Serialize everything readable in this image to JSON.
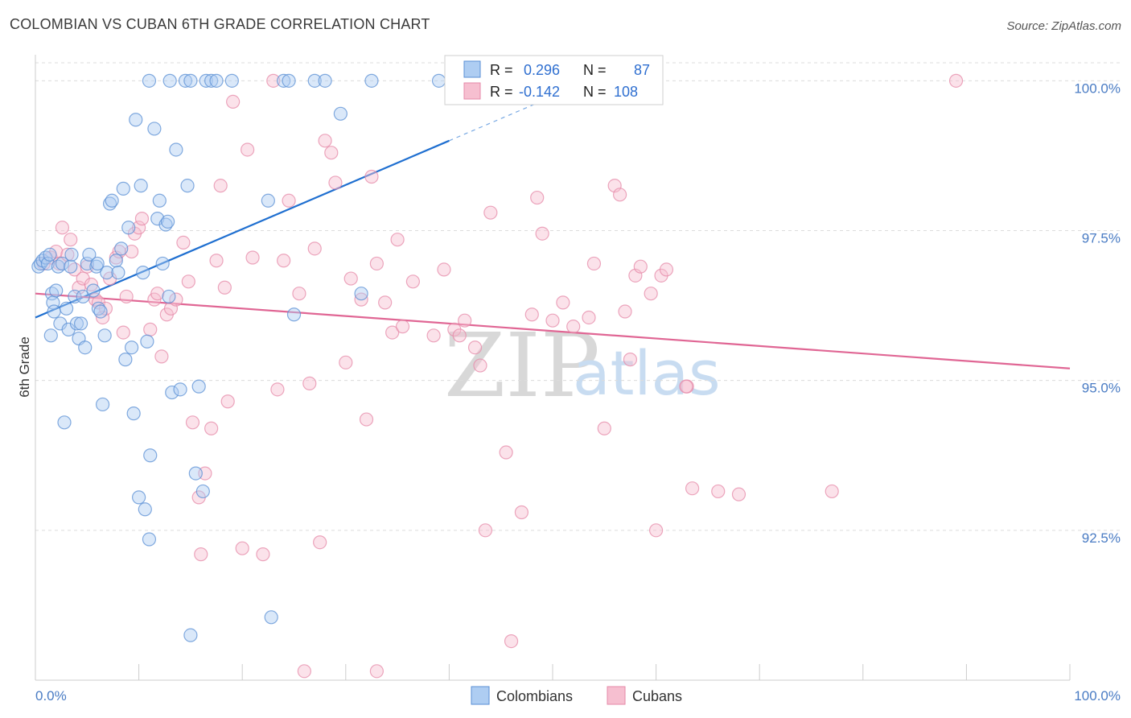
{
  "header": {
    "title": "COLOMBIAN VS CUBAN 6TH GRADE CORRELATION CHART",
    "source": "Source: ZipAtlas.com"
  },
  "watermark": {
    "zip": "ZIP",
    "atlas": "atlas"
  },
  "colors": {
    "colombians_fill": "#aecdf2",
    "colombians_stroke": "#5a8fd4",
    "colombians_line": "#1f6fd0",
    "cubans_fill": "#f6bfd0",
    "cubans_stroke": "#e68aa8",
    "cubans_line": "#e06694",
    "grid": "#dcdcdc",
    "axis_tick": "#4a7cc4"
  },
  "stats": [
    {
      "r_label": "R =",
      "r_value": "0.296",
      "n_label": "N =",
      "n_value": "87"
    },
    {
      "r_label": "R =",
      "r_value": "-0.142",
      "n_label": "N =",
      "n_value": "108"
    }
  ],
  "chart_data": {
    "type": "scatter",
    "title": "COLOMBIAN VS CUBAN 6TH GRADE CORRELATION CHART",
    "xlabel": "",
    "ylabel": "6th Grade",
    "xlim": [
      0,
      100
    ],
    "ylim": [
      90.0,
      100.3
    ],
    "x_tick_labels": [
      "0.0%",
      "100.0%"
    ],
    "y_ticks": [
      92.5,
      95.0,
      97.5,
      100.0
    ],
    "y_tick_labels": [
      "92.5%",
      "95.0%",
      "97.5%",
      "100.0%"
    ],
    "grid": true,
    "legend_position": "bottom-center",
    "series": [
      {
        "name": "Colombians",
        "trend": {
          "x0": 0,
          "y0": 96.05,
          "x1": 40,
          "y1": 99.0,
          "dashed_to_x": 50
        },
        "points": [
          [
            0.3,
            96.9
          ],
          [
            0.5,
            96.95
          ],
          [
            0.7,
            97.0
          ],
          [
            1.0,
            97.05
          ],
          [
            1.2,
            96.95
          ],
          [
            1.4,
            97.1
          ],
          [
            1.5,
            95.75
          ],
          [
            1.6,
            96.45
          ],
          [
            1.7,
            96.3
          ],
          [
            1.8,
            96.15
          ],
          [
            2.0,
            96.5
          ],
          [
            2.2,
            96.9
          ],
          [
            2.4,
            95.95
          ],
          [
            2.6,
            96.95
          ],
          [
            2.8,
            94.3
          ],
          [
            3.0,
            96.2
          ],
          [
            3.2,
            95.85
          ],
          [
            3.4,
            96.9
          ],
          [
            3.5,
            97.1
          ],
          [
            3.8,
            96.4
          ],
          [
            4.0,
            95.95
          ],
          [
            4.2,
            95.7
          ],
          [
            4.4,
            95.95
          ],
          [
            4.6,
            96.4
          ],
          [
            4.8,
            95.55
          ],
          [
            5.0,
            96.95
          ],
          [
            5.2,
            97.1
          ],
          [
            5.6,
            96.5
          ],
          [
            5.9,
            96.9
          ],
          [
            6.1,
            96.2
          ],
          [
            6.3,
            96.15
          ],
          [
            6.5,
            94.6
          ],
          [
            6.7,
            95.75
          ],
          [
            6.9,
            96.8
          ],
          [
            7.2,
            97.95
          ],
          [
            7.4,
            98.0
          ],
          [
            7.8,
            97.0
          ],
          [
            8.0,
            96.8
          ],
          [
            8.3,
            97.2
          ],
          [
            8.5,
            98.2
          ],
          [
            8.7,
            95.35
          ],
          [
            9.0,
            97.55
          ],
          [
            9.3,
            95.55
          ],
          [
            9.5,
            94.45
          ],
          [
            9.7,
            99.35
          ],
          [
            10.0,
            93.05
          ],
          [
            10.2,
            98.25
          ],
          [
            10.4,
            96.8
          ],
          [
            10.6,
            92.85
          ],
          [
            10.8,
            95.65
          ],
          [
            11.0,
            92.35
          ],
          [
            11.1,
            93.75
          ],
          [
            11.5,
            99.2
          ],
          [
            11.8,
            97.7
          ],
          [
            12.0,
            98.0
          ],
          [
            12.3,
            96.95
          ],
          [
            12.6,
            97.6
          ],
          [
            12.9,
            96.4
          ],
          [
            13.2,
            94.8
          ],
          [
            13.6,
            98.85
          ],
          [
            14.0,
            94.85
          ],
          [
            14.7,
            98.25
          ],
          [
            15.0,
            90.75
          ],
          [
            15.5,
            93.45
          ],
          [
            15.8,
            94.9
          ],
          [
            16.2,
            93.15
          ],
          [
            11.0,
            100.0
          ],
          [
            13.0,
            100.0
          ],
          [
            14.5,
            100.0
          ],
          [
            15.0,
            100.0
          ],
          [
            16.5,
            100.0
          ],
          [
            17.0,
            100.0
          ],
          [
            17.5,
            100.0
          ],
          [
            19.0,
            100.0
          ],
          [
            22.5,
            98.0
          ],
          [
            22.8,
            91.05
          ],
          [
            24.0,
            100.0
          ],
          [
            24.5,
            100.0
          ],
          [
            25.0,
            96.1
          ],
          [
            27.0,
            100.0
          ],
          [
            28.0,
            100.0
          ],
          [
            29.5,
            99.45
          ],
          [
            31.5,
            96.45
          ],
          [
            32.5,
            100.0
          ],
          [
            39.0,
            100.0
          ],
          [
            12.8,
            97.65
          ],
          [
            6.0,
            96.95
          ]
        ]
      },
      {
        "name": "Cubans",
        "trend": {
          "x0": 0,
          "y0": 96.45,
          "x1": 100,
          "y1": 95.2
        },
        "points": [
          [
            0.8,
            96.95
          ],
          [
            1.5,
            97.05
          ],
          [
            2.0,
            97.15
          ],
          [
            2.3,
            96.95
          ],
          [
            2.6,
            97.55
          ],
          [
            3.1,
            97.1
          ],
          [
            3.4,
            97.35
          ],
          [
            3.8,
            96.85
          ],
          [
            4.2,
            96.55
          ],
          [
            4.6,
            96.7
          ],
          [
            5.0,
            96.9
          ],
          [
            5.4,
            96.6
          ],
          [
            5.8,
            96.35
          ],
          [
            6.1,
            96.3
          ],
          [
            6.5,
            96.05
          ],
          [
            6.8,
            96.2
          ],
          [
            7.2,
            96.7
          ],
          [
            7.8,
            97.05
          ],
          [
            8.1,
            97.15
          ],
          [
            8.5,
            95.8
          ],
          [
            8.8,
            96.4
          ],
          [
            9.3,
            97.15
          ],
          [
            9.6,
            97.45
          ],
          [
            10.0,
            97.55
          ],
          [
            10.3,
            97.7
          ],
          [
            11.1,
            95.85
          ],
          [
            11.5,
            96.35
          ],
          [
            11.8,
            96.45
          ],
          [
            12.2,
            95.4
          ],
          [
            12.7,
            96.1
          ],
          [
            13.1,
            96.2
          ],
          [
            13.6,
            96.35
          ],
          [
            14.3,
            97.3
          ],
          [
            14.8,
            96.65
          ],
          [
            15.2,
            94.3
          ],
          [
            15.8,
            93.05
          ],
          [
            16.0,
            92.1
          ],
          [
            16.4,
            93.45
          ],
          [
            17.0,
            94.2
          ],
          [
            17.5,
            97.0
          ],
          [
            17.9,
            98.25
          ],
          [
            18.3,
            96.55
          ],
          [
            18.6,
            94.65
          ],
          [
            19.1,
            99.65
          ],
          [
            20.0,
            92.2
          ],
          [
            20.5,
            98.85
          ],
          [
            21.0,
            97.05
          ],
          [
            22.0,
            92.1
          ],
          [
            23.0,
            100.0
          ],
          [
            23.4,
            94.85
          ],
          [
            24.0,
            97.0
          ],
          [
            24.5,
            98.0
          ],
          [
            25.5,
            96.45
          ],
          [
            26.5,
            94.95
          ],
          [
            27.0,
            97.2
          ],
          [
            27.5,
            92.3
          ],
          [
            28.0,
            99.0
          ],
          [
            28.6,
            98.8
          ],
          [
            29.0,
            98.3
          ],
          [
            30.0,
            95.3
          ],
          [
            30.5,
            96.7
          ],
          [
            31.5,
            96.35
          ],
          [
            32.0,
            94.35
          ],
          [
            32.5,
            98.4
          ],
          [
            33.0,
            96.95
          ],
          [
            33.8,
            96.3
          ],
          [
            34.5,
            95.8
          ],
          [
            35.0,
            97.35
          ],
          [
            35.5,
            95.9
          ],
          [
            36.5,
            96.65
          ],
          [
            38.5,
            95.75
          ],
          [
            39.5,
            96.85
          ],
          [
            40.5,
            95.85
          ],
          [
            41.0,
            95.75
          ],
          [
            41.5,
            96.0
          ],
          [
            42.5,
            95.55
          ],
          [
            43.0,
            95.25
          ],
          [
            43.5,
            92.5
          ],
          [
            44.0,
            97.8
          ],
          [
            45.5,
            93.8
          ],
          [
            46.0,
            90.65
          ],
          [
            47.0,
            92.8
          ],
          [
            48.0,
            96.1
          ],
          [
            48.5,
            98.05
          ],
          [
            49.0,
            97.45
          ],
          [
            50.0,
            96.0
          ],
          [
            51.0,
            96.3
          ],
          [
            52.0,
            95.9
          ],
          [
            53.5,
            96.05
          ],
          [
            54.0,
            96.95
          ],
          [
            55.0,
            94.2
          ],
          [
            56.0,
            98.25
          ],
          [
            56.5,
            98.1
          ],
          [
            57.0,
            96.15
          ],
          [
            57.5,
            95.35
          ],
          [
            58.0,
            96.75
          ],
          [
            58.5,
            96.9
          ],
          [
            59.5,
            96.45
          ],
          [
            60.0,
            92.5
          ],
          [
            60.5,
            96.75
          ],
          [
            61.0,
            96.85
          ],
          [
            63.0,
            94.9
          ],
          [
            63.5,
            93.2
          ],
          [
            66.0,
            93.15
          ],
          [
            68.0,
            93.1
          ],
          [
            77.0,
            93.15
          ],
          [
            89.0,
            100.0
          ],
          [
            33.0,
            90.15
          ],
          [
            26.0,
            90.15
          ],
          [
            62.9,
            94.9
          ]
        ]
      }
    ]
  },
  "legend": [
    {
      "label": "Colombians"
    },
    {
      "label": "Cubans"
    }
  ]
}
